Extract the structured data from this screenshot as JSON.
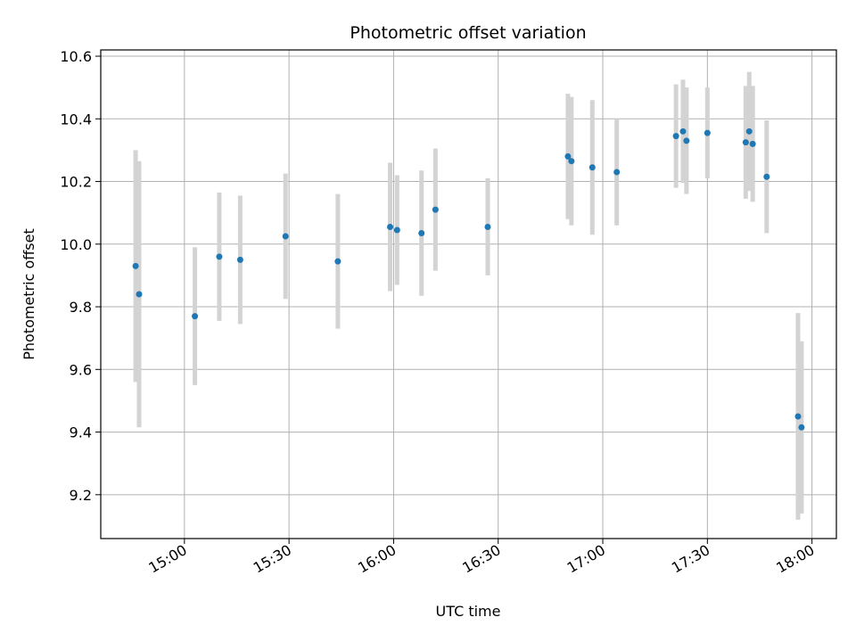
{
  "chart_data": {
    "type": "scatter",
    "title": "Photometric offset variation",
    "xlabel": "UTC time",
    "ylabel": "Photometric offset",
    "x_ticks": [
      "15:00",
      "15:30",
      "16:00",
      "16:30",
      "17:00",
      "17:30",
      "18:00"
    ],
    "y_ticks": [
      "9.2",
      "9.4",
      "9.6",
      "9.8",
      "10.0",
      "10.2",
      "10.4",
      "10.6"
    ],
    "xlim": [
      "14:36",
      "18:07"
    ],
    "ylim": [
      9.06,
      10.62
    ],
    "grid": true,
    "colors": {
      "point": "#1f77b4",
      "errorbar": "#d3d3d3",
      "grid": "#b0b0b0"
    },
    "points": [
      {
        "time": "14:46",
        "y": 9.93,
        "err": 0.37
      },
      {
        "time": "14:47",
        "y": 9.84,
        "err": 0.425
      },
      {
        "time": "15:03",
        "y": 9.77,
        "err": 0.22
      },
      {
        "time": "15:10",
        "y": 9.96,
        "err": 0.205
      },
      {
        "time": "15:16",
        "y": 9.95,
        "err": 0.205
      },
      {
        "time": "15:29",
        "y": 10.025,
        "err": 0.2
      },
      {
        "time": "15:44",
        "y": 9.945,
        "err": 0.215
      },
      {
        "time": "15:59",
        "y": 10.055,
        "err": 0.205
      },
      {
        "time": "16:01",
        "y": 10.045,
        "err": 0.175
      },
      {
        "time": "16:08",
        "y": 10.035,
        "err": 0.2
      },
      {
        "time": "16:12",
        "y": 10.11,
        "err": 0.195
      },
      {
        "time": "16:27",
        "y": 10.055,
        "err": 0.155
      },
      {
        "time": "16:50",
        "y": 10.28,
        "err": 0.2
      },
      {
        "time": "16:51",
        "y": 10.265,
        "err": 0.205
      },
      {
        "time": "16:57",
        "y": 10.245,
        "err": 0.215
      },
      {
        "time": "17:04",
        "y": 10.23,
        "err": 0.17
      },
      {
        "time": "17:21",
        "y": 10.345,
        "err": 0.165
      },
      {
        "time": "17:23",
        "y": 10.36,
        "err": 0.165
      },
      {
        "time": "17:24",
        "y": 10.33,
        "err": 0.17
      },
      {
        "time": "17:30",
        "y": 10.355,
        "err": 0.145
      },
      {
        "time": "17:41",
        "y": 10.325,
        "err": 0.18
      },
      {
        "time": "17:42",
        "y": 10.36,
        "err": 0.19
      },
      {
        "time": "17:43",
        "y": 10.32,
        "err": 0.185
      },
      {
        "time": "17:47",
        "y": 10.215,
        "err": 0.18
      },
      {
        "time": "17:56",
        "y": 9.45,
        "err": 0.33
      },
      {
        "time": "17:57",
        "y": 9.415,
        "err": 0.275
      }
    ]
  }
}
